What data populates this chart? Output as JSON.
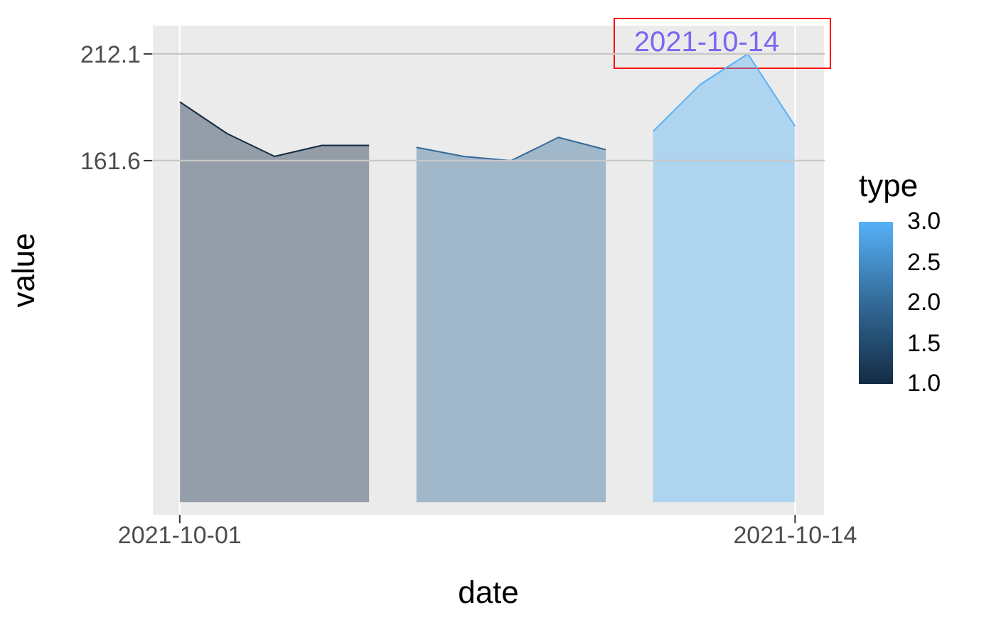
{
  "chart_data": {
    "type": "area",
    "xlabel": "date",
    "ylabel": "value",
    "clabel": "type",
    "clim": [
      1,
      3
    ],
    "cticks": [
      {
        "value": 1,
        "label": "1.0"
      },
      {
        "value": 1.5,
        "label": "1.5"
      },
      {
        "value": 2,
        "label": "2.0"
      },
      {
        "value": 2.5,
        "label": "2.5"
      },
      {
        "value": 3,
        "label": "3.0"
      }
    ],
    "series": [
      {
        "color": "#132b43",
        "x": [
          "2021-10-01",
          "2021-10-02",
          "2021-10-03",
          "2021-10-04",
          "2021-10-05"
        ],
        "values": [
          189.4,
          174.4,
          163.6,
          168.8,
          168.8
        ]
      },
      {
        "color": "#336a98",
        "x": [
          "2021-10-06",
          "2021-10-07",
          "2021-10-08",
          "2021-10-09",
          "2021-10-10"
        ],
        "values": [
          167.9,
          163.6,
          161.6,
          172.6,
          166.8
        ]
      },
      {
        "color": "#56b1f7",
        "x": [
          "2021-10-11",
          "2021-10-12",
          "2021-10-13",
          "2021-10-14"
        ],
        "values": [
          175.5,
          197.7,
          212.1,
          177.9
        ]
      }
    ],
    "xlim": [
      "2021-09-30T10:00",
      "2021-10-14T15:00"
    ],
    "xticks": [
      "2021-10-01",
      "2021-10-14"
    ],
    "ylim": [
      -6,
      225.5
    ],
    "yticks": [
      161.6,
      212.1
    ],
    "grid": "x",
    "ref_lines": [
      {
        "axis": "y",
        "value": 161.6,
        "color": "#c8c8c8"
      },
      {
        "axis": "y",
        "value": 212.1,
        "color": "#c8c8c8"
      }
    ],
    "annotations": [
      "2021-10-14"
    ]
  }
}
